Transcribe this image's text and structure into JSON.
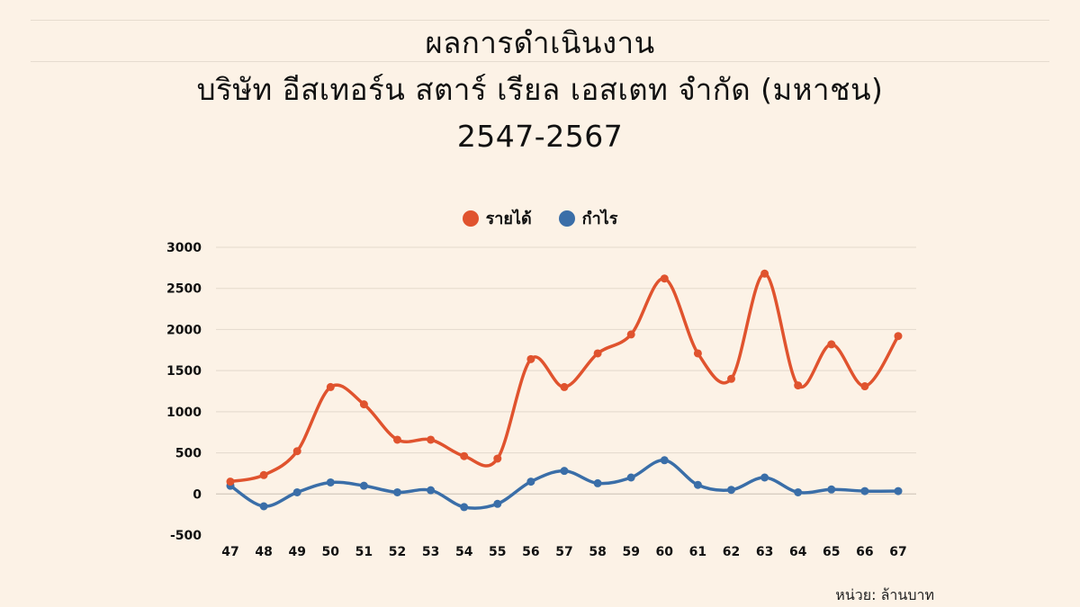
{
  "title_lines": [
    "ผลการดำเนินงาน",
    "บริษัท อีสเทอร์น สตาร์ เรียล เอสเตท จำกัด (มหาชน)",
    "2547-2567"
  ],
  "unit_note": "หน่วย: ล้านบาท",
  "colors": {
    "revenue": "#e0532e",
    "profit": "#3a6ea8",
    "background": "#fcf2e6"
  },
  "chart_data": {
    "type": "line",
    "categories": [
      "47",
      "48",
      "49",
      "50",
      "51",
      "52",
      "53",
      "54",
      "55",
      "56",
      "57",
      "58",
      "59",
      "60",
      "61",
      "62",
      "63",
      "64",
      "65",
      "66",
      "67"
    ],
    "series": [
      {
        "name": "รายได้",
        "values": [
          150,
          230,
          520,
          1300,
          1090,
          660,
          660,
          460,
          430,
          1640,
          1300,
          1710,
          1940,
          2620,
          1710,
          1400,
          2680,
          1320,
          1820,
          1310,
          1920
        ]
      },
      {
        "name": "กำไร",
        "values": [
          100,
          -150,
          20,
          140,
          100,
          20,
          45,
          -160,
          -120,
          150,
          280,
          130,
          200,
          410,
          110,
          50,
          200,
          20,
          55,
          35,
          35
        ]
      }
    ],
    "yticks": [
      3000,
      2500,
      2000,
      1500,
      1000,
      500,
      0,
      -500
    ],
    "ylim": [
      -500,
      3000
    ],
    "grid": true,
    "legend_position": "top-center",
    "xlabel": "",
    "ylabel": ""
  }
}
